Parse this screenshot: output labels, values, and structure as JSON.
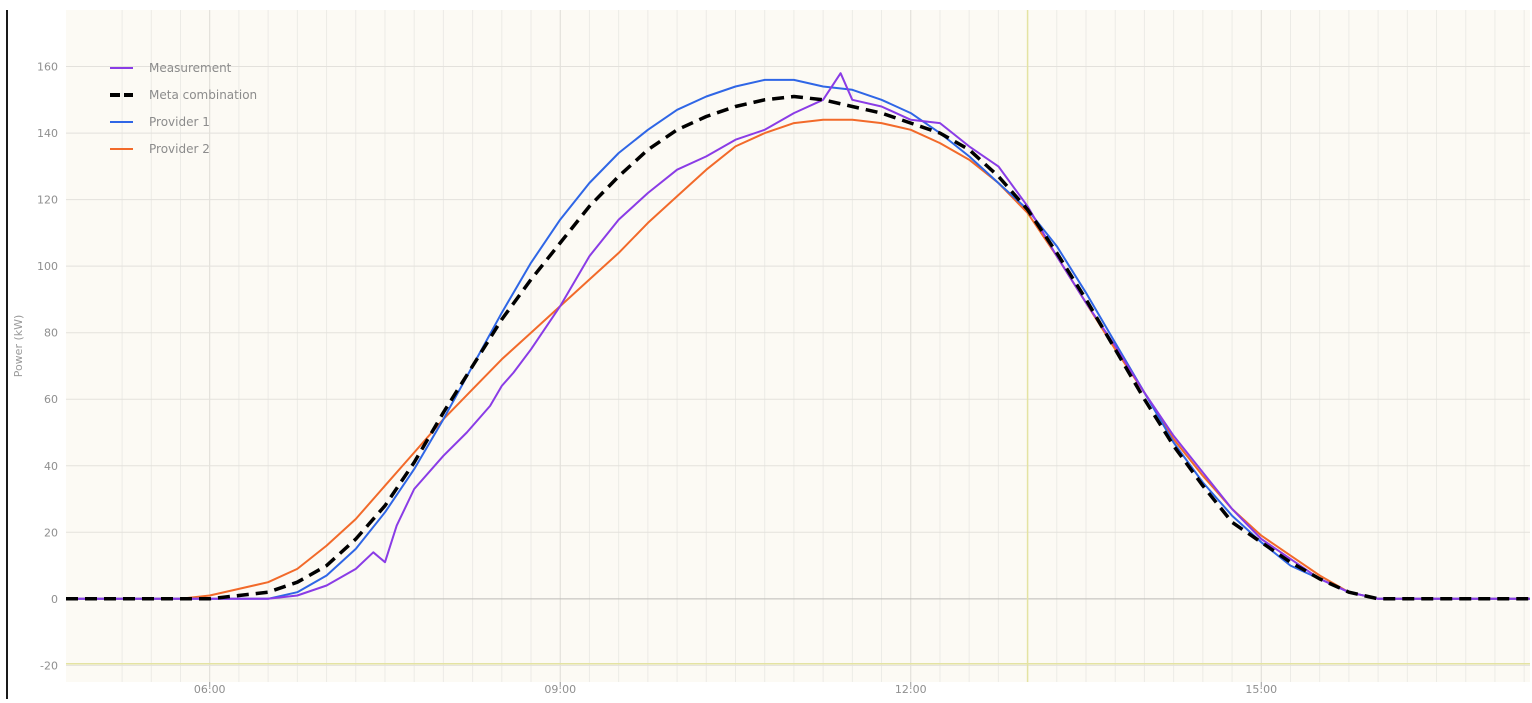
{
  "chart_data": {
    "type": "line",
    "title": "",
    "xlabel": "",
    "ylabel": "Power (kW)",
    "x_unit": "hours",
    "xlim": [
      4.77,
      17.3
    ],
    "ylim": [
      -25,
      177
    ],
    "x_ticks": [
      {
        "value": 6,
        "label": "06:00"
      },
      {
        "value": 9,
        "label": "09:00"
      },
      {
        "value": 12,
        "label": "12:00"
      },
      {
        "value": 15,
        "label": "15:00"
      }
    ],
    "y_ticks": [
      -20,
      0,
      20,
      40,
      60,
      80,
      100,
      120,
      140,
      160
    ],
    "x_minor_grid": [
      5.25,
      5.5,
      5.75,
      6.25,
      6.5,
      6.75,
      7.0,
      7.25,
      7.5,
      7.75,
      8.0,
      8.25,
      8.5,
      8.75,
      9.25,
      9.5,
      9.75,
      10.0,
      10.25,
      10.5,
      10.75,
      11.0,
      11.25,
      11.5,
      11.75,
      12.25,
      12.5,
      12.75,
      13.0,
      13.25,
      13.5,
      13.75,
      14.0,
      14.25,
      14.5,
      14.75,
      15.25,
      15.5,
      15.75,
      16.0,
      16.25,
      16.5,
      16.75,
      17.0,
      17.25
    ],
    "grid": true,
    "legend_position": "top-left",
    "markers": {
      "vertical_line_x": 13.0,
      "horizontal_line_y": -19.5,
      "color": "#e4e3a2"
    },
    "background": "#fcfaf4",
    "series": [
      {
        "name": "Measurement",
        "color": "#8a3ce6",
        "style": "solid",
        "x": [
          4.77,
          6.0,
          6.5,
          6.75,
          7.0,
          7.25,
          7.4,
          7.5,
          7.6,
          7.75,
          8.0,
          8.2,
          8.4,
          8.5,
          8.6,
          8.75,
          9.0,
          9.25,
          9.5,
          9.75,
          10.0,
          10.25,
          10.5,
          10.75,
          11.0,
          11.25,
          11.4,
          11.5,
          11.75,
          12.0,
          12.25,
          12.5,
          12.75,
          13.0,
          13.25,
          13.5,
          13.75,
          14.0,
          14.25,
          14.5,
          14.75,
          15.0,
          15.25,
          15.5,
          15.75,
          16.0,
          16.25,
          16.5,
          17.0,
          17.3
        ],
        "y": [
          0,
          0,
          0,
          1,
          4,
          9,
          14,
          11,
          22,
          33,
          43,
          50,
          58,
          64,
          68,
          75,
          88,
          103,
          114,
          122,
          129,
          133,
          138,
          141,
          146,
          150,
          158,
          150,
          148,
          144,
          143,
          136,
          130,
          118,
          103,
          89,
          76,
          62,
          49,
          38,
          27,
          18,
          12,
          6,
          2,
          0,
          0,
          0,
          0,
          0
        ]
      },
      {
        "name": "Meta combination",
        "color": "#000000",
        "style": "dashed",
        "x": [
          4.77,
          6.0,
          6.25,
          6.5,
          6.75,
          7.0,
          7.25,
          7.5,
          7.75,
          8.0,
          8.25,
          8.5,
          8.75,
          9.0,
          9.25,
          9.5,
          9.75,
          10.0,
          10.25,
          10.5,
          10.75,
          11.0,
          11.25,
          11.5,
          11.75,
          12.0,
          12.25,
          12.5,
          12.75,
          13.0,
          13.25,
          13.5,
          13.75,
          14.0,
          14.25,
          14.5,
          14.75,
          15.0,
          15.25,
          15.5,
          15.75,
          16.0,
          16.25,
          17.0,
          17.3
        ],
        "y": [
          0,
          0,
          1,
          2,
          5,
          10,
          18,
          28,
          41,
          56,
          70,
          84,
          96,
          107,
          118,
          127,
          135,
          141,
          145,
          148,
          150,
          151,
          150,
          148,
          146,
          143,
          140,
          135,
          127,
          117,
          104,
          90,
          75,
          60,
          46,
          34,
          23,
          17,
          11,
          6,
          2,
          0,
          0,
          0,
          0
        ]
      },
      {
        "name": "Provider 1",
        "color": "#2f66e6",
        "style": "solid",
        "x": [
          4.77,
          6.0,
          6.5,
          6.75,
          7.0,
          7.25,
          7.5,
          7.75,
          8.0,
          8.25,
          8.5,
          8.75,
          9.0,
          9.25,
          9.5,
          9.75,
          10.0,
          10.25,
          10.5,
          10.75,
          11.0,
          11.25,
          11.5,
          11.75,
          12.0,
          12.25,
          12.5,
          12.75,
          13.0,
          13.25,
          13.5,
          13.75,
          14.0,
          14.25,
          14.5,
          14.75,
          15.0,
          15.25,
          15.5,
          15.75,
          16.0,
          16.25,
          17.0,
          17.3
        ],
        "y": [
          0,
          0,
          0,
          2,
          7,
          15,
          26,
          39,
          54,
          70,
          86,
          101,
          114,
          125,
          134,
          141,
          147,
          151,
          154,
          156,
          156,
          154,
          153,
          150,
          146,
          140,
          133,
          125,
          117,
          106,
          92,
          77,
          62,
          47,
          35,
          25,
          17,
          10,
          6,
          2,
          0,
          0,
          0,
          0
        ]
      },
      {
        "name": "Provider 2",
        "color": "#f26a2a",
        "style": "solid",
        "x": [
          4.77,
          5.75,
          6.0,
          6.25,
          6.5,
          6.75,
          7.0,
          7.25,
          7.5,
          7.75,
          8.0,
          8.25,
          8.5,
          8.75,
          9.0,
          9.25,
          9.5,
          9.75,
          10.0,
          10.25,
          10.5,
          10.75,
          11.0,
          11.25,
          11.5,
          11.75,
          12.0,
          12.25,
          12.5,
          12.75,
          13.0,
          13.25,
          13.5,
          13.75,
          14.0,
          14.25,
          14.5,
          14.75,
          15.0,
          15.25,
          15.5,
          15.75,
          16.0,
          16.25,
          17.0,
          17.3
        ],
        "y": [
          0,
          0,
          1,
          3,
          5,
          9,
          16,
          24,
          34,
          44,
          54,
          63,
          72,
          80,
          88,
          96,
          104,
          113,
          121,
          129,
          136,
          140,
          143,
          144,
          144,
          143,
          141,
          137,
          132,
          125,
          116,
          103,
          89,
          75,
          62,
          48,
          37,
          27,
          19,
          13,
          7,
          2,
          0,
          0,
          0,
          0
        ]
      }
    ]
  }
}
